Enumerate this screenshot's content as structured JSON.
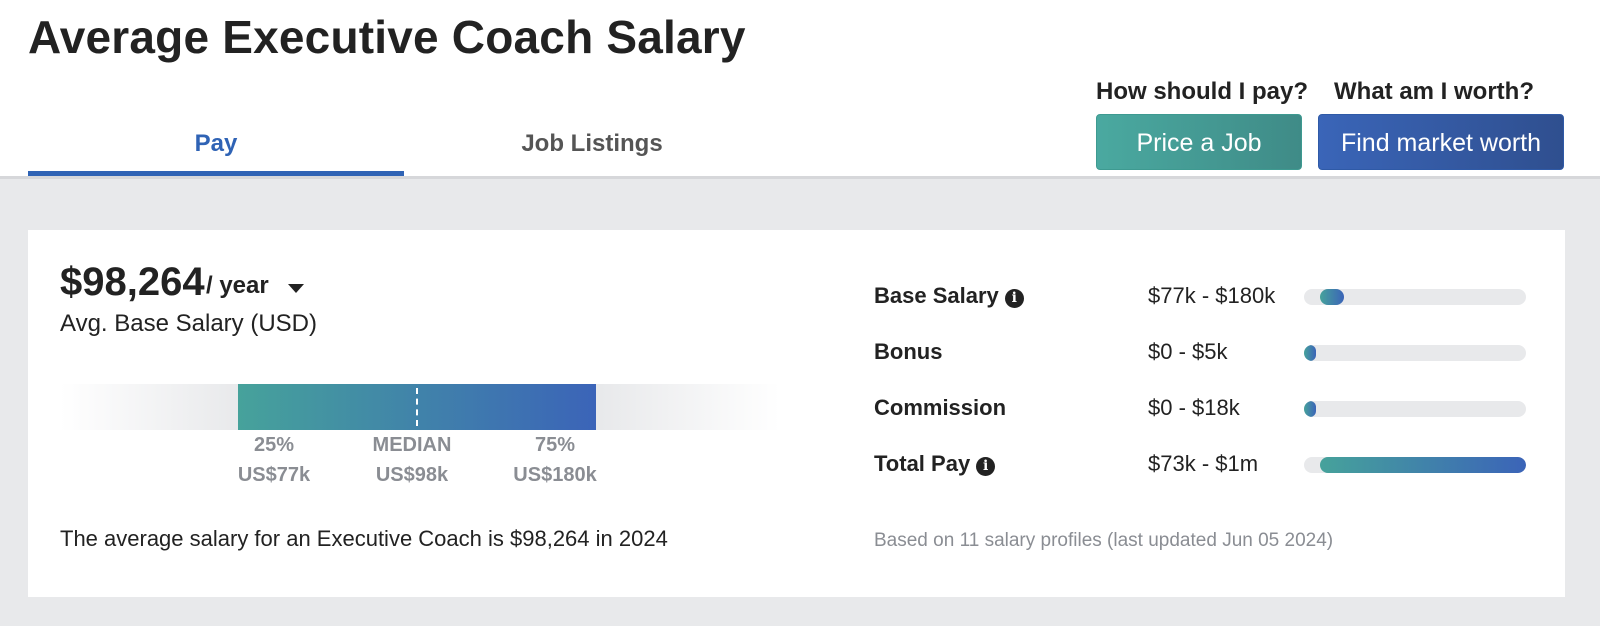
{
  "page": {
    "title": "Average Executive Coach Salary"
  },
  "tabs": [
    {
      "label": "Pay",
      "active": true
    },
    {
      "label": "Job Listings",
      "active": false
    }
  ],
  "cta": {
    "price": {
      "question": "How should I pay?",
      "button_label": "Price a Job",
      "color": "#46a29b"
    },
    "worth": {
      "question": "What am I worth?",
      "button_label": "Find market worth",
      "color": "#2f5aa7"
    }
  },
  "average": {
    "amount": "$98,264",
    "period": "/ year",
    "subtitle": "Avg. Base Salary (USD)",
    "summary": "The average salary for an Executive Coach is $98,264 in 2024"
  },
  "distribution": {
    "p25": {
      "label": "25%",
      "value": "US$77k"
    },
    "median": {
      "label": "MEDIAN",
      "value": "US$98k"
    },
    "p75": {
      "label": "75%",
      "value": "US$180k"
    }
  },
  "compensation": [
    {
      "label": "Base Salary",
      "has_info": true,
      "range": "$77k - $180k",
      "fill_start": 0.07,
      "fill_end": 0.18
    },
    {
      "label": "Bonus",
      "has_info": false,
      "range": "$0 - $5k",
      "fill_start": 0.0,
      "fill_end": 0.05
    },
    {
      "label": "Commission",
      "has_info": false,
      "range": "$0 - $18k",
      "fill_start": 0.0,
      "fill_end": 0.05
    },
    {
      "label": "Total Pay",
      "has_info": true,
      "range": "$73k - $1m",
      "fill_start": 0.07,
      "fill_end": 1.0
    }
  ],
  "footnote": "Based on 11 salary profiles (last updated Jun 05 2024)",
  "icons": {
    "info": "info-icon",
    "period_dropdown": "caret-down-icon"
  }
}
